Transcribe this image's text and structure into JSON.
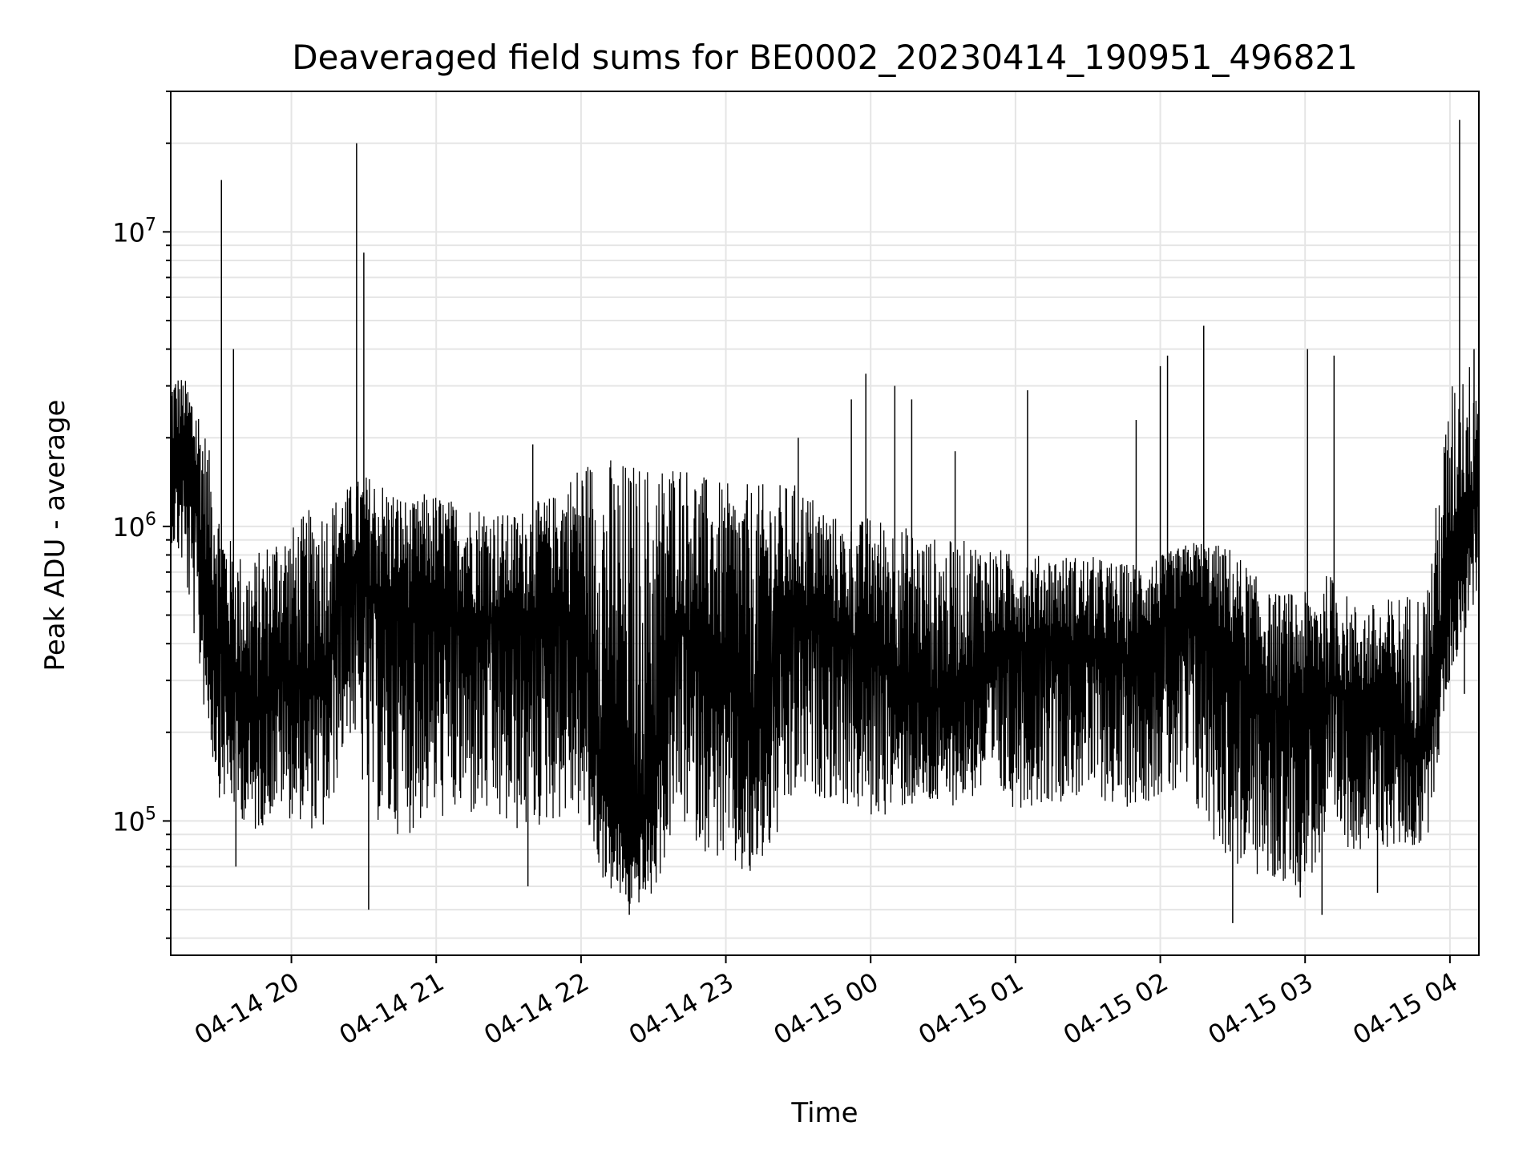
{
  "chart_data": {
    "type": "line",
    "title": "Deaveraged field sums for BE0002_20230414_190951_496821",
    "xlabel": "Time",
    "ylabel": "Peak ADU - average",
    "yscale": "log",
    "ylim": [
      35000,
      30000000
    ],
    "xlim": [
      "2023-04-14 19:10",
      "2023-04-15 04:12"
    ],
    "grid": true,
    "line_color": "#000000",
    "grid_color": "#e5e5e5",
    "x_ticks": [
      "04-14 20",
      "04-14 21",
      "04-14 22",
      "04-14 23",
      "04-15 00",
      "04-15 01",
      "04-15 02",
      "04-15 03",
      "04-15 04"
    ],
    "y_ticks": [
      {
        "value": 100000,
        "base": "10",
        "exp": "5"
      },
      {
        "value": 1000000,
        "base": "10",
        "exp": "6"
      },
      {
        "value": 10000000,
        "base": "10",
        "exp": "7"
      }
    ],
    "series": [
      {
        "x": [
          "2023-04-14 19:10",
          "2023-04-14 19:15",
          "2023-04-14 19:20",
          "2023-04-14 19:25",
          "2023-04-14 19:30",
          "2023-04-14 19:35",
          "2023-04-14 19:40",
          "2023-04-14 19:45",
          "2023-04-14 19:50",
          "2023-04-14 19:55",
          "2023-04-14 20:00",
          "2023-04-14 20:05",
          "2023-04-14 20:10",
          "2023-04-14 20:15",
          "2023-04-14 20:20",
          "2023-04-14 20:25",
          "2023-04-14 20:30",
          "2023-04-14 20:35",
          "2023-04-14 20:40",
          "2023-04-14 20:45",
          "2023-04-14 20:50",
          "2023-04-14 20:55",
          "2023-04-14 21:00",
          "2023-04-14 21:10",
          "2023-04-14 21:20",
          "2023-04-14 21:30",
          "2023-04-14 21:40",
          "2023-04-14 21:50",
          "2023-04-14 22:00",
          "2023-04-14 22:10",
          "2023-04-14 22:20",
          "2023-04-14 22:30",
          "2023-04-14 22:40",
          "2023-04-14 22:50",
          "2023-04-14 23:00",
          "2023-04-14 23:10",
          "2023-04-14 23:20",
          "2023-04-14 23:30",
          "2023-04-14 23:40",
          "2023-04-14 23:50",
          "2023-04-15 00:00",
          "2023-04-15 00:15",
          "2023-04-15 00:30",
          "2023-04-15 00:45",
          "2023-04-15 01:00",
          "2023-04-15 01:15",
          "2023-04-15 01:30",
          "2023-04-15 01:45",
          "2023-04-15 02:00",
          "2023-04-15 02:15",
          "2023-04-15 02:30",
          "2023-04-15 02:45",
          "2023-04-15 03:00",
          "2023-04-15 03:10",
          "2023-04-15 03:20",
          "2023-04-15 03:30",
          "2023-04-15 03:40",
          "2023-04-15 03:50",
          "2023-04-15 04:00",
          "2023-04-15 04:05",
          "2023-04-15 04:12"
        ],
        "y": [
          1500000,
          2000000,
          1200000,
          700000,
          400000,
          300000,
          250000,
          220000,
          280000,
          350000,
          300000,
          280000,
          320000,
          350000,
          600000,
          650000,
          700000,
          550000,
          500000,
          550000,
          500000,
          550000,
          550000,
          500000,
          480000,
          450000,
          500000,
          550000,
          450000,
          130000,
          90000,
          110000,
          500000,
          350000,
          300000,
          200000,
          350000,
          500000,
          450000,
          400000,
          380000,
          300000,
          250000,
          350000,
          400000,
          420000,
          380000,
          350000,
          450000,
          600000,
          350000,
          250000,
          230000,
          280000,
          250000,
          220000,
          200000,
          180000,
          600000,
          900000,
          1300000
        ],
        "low": [
          900000,
          700000,
          400000,
          200000,
          120000,
          110000,
          100000,
          90000,
          100000,
          110000,
          100000,
          100000,
          90000,
          90000,
          150000,
          200000,
          120000,
          100000,
          90000,
          90000,
          90000,
          100000,
          100000,
          100000,
          100000,
          90000,
          90000,
          100000,
          100000,
          60000,
          50000,
          55000,
          100000,
          80000,
          70000,
          60000,
          80000,
          120000,
          120000,
          110000,
          100000,
          110000,
          110000,
          120000,
          110000,
          115000,
          120000,
          110000,
          120000,
          100000,
          70000,
          60000,
          60000,
          80000,
          80000,
          80000,
          80000,
          80000,
          300000,
          400000,
          600000
        ],
        "high": [
          3500000,
          3200000,
          3000000,
          2000000,
          1200000,
          900000,
          800000,
          800000,
          900000,
          1000000,
          1000000,
          1100000,
          1200000,
          1200000,
          1300000,
          1400000,
          1500000,
          1500000,
          1400000,
          1300000,
          1200000,
          1300000,
          1300000,
          1200000,
          1200000,
          1100000,
          1200000,
          1300000,
          1700000,
          1800000,
          1700000,
          1700000,
          1700000,
          1500000,
          1400000,
          1400000,
          1400000,
          1400000,
          1200000,
          1000000,
          1100000,
          1000000,
          900000,
          900000,
          800000,
          800000,
          800000,
          750000,
          800000,
          900000,
          850000,
          600000,
          600000,
          700000,
          550000,
          550000,
          600000,
          600000,
          3000000,
          3500000,
          3800000
        ]
      }
    ],
    "spikes": [
      {
        "x": "2023-04-14 19:31",
        "y": 15000000
      },
      {
        "x": "2023-04-14 19:36",
        "y": 4000000
      },
      {
        "x": "2023-04-14 19:37",
        "y": 70000
      },
      {
        "x": "2023-04-14 20:27",
        "y": 20000000
      },
      {
        "x": "2023-04-14 20:30",
        "y": 8500000
      },
      {
        "x": "2023-04-14 20:32",
        "y": 50000
      },
      {
        "x": "2023-04-14 21:38",
        "y": 60000
      },
      {
        "x": "2023-04-14 21:40",
        "y": 1900000
      },
      {
        "x": "2023-04-14 22:20",
        "y": 48000
      },
      {
        "x": "2023-04-14 23:30",
        "y": 2000000
      },
      {
        "x": "2023-04-14 23:52",
        "y": 2700000
      },
      {
        "x": "2023-04-14 23:58",
        "y": 3300000
      },
      {
        "x": "2023-04-15 00:10",
        "y": 3000000
      },
      {
        "x": "2023-04-15 00:17",
        "y": 2700000
      },
      {
        "x": "2023-04-15 00:35",
        "y": 1800000
      },
      {
        "x": "2023-04-15 01:05",
        "y": 2900000
      },
      {
        "x": "2023-04-15 01:50",
        "y": 2300000
      },
      {
        "x": "2023-04-15 02:00",
        "y": 3500000
      },
      {
        "x": "2023-04-15 02:03",
        "y": 3800000
      },
      {
        "x": "2023-04-15 02:18",
        "y": 4800000
      },
      {
        "x": "2023-04-15 02:30",
        "y": 45000
      },
      {
        "x": "2023-04-15 02:58",
        "y": 55000
      },
      {
        "x": "2023-04-15 03:01",
        "y": 4000000
      },
      {
        "x": "2023-04-15 03:07",
        "y": 48000
      },
      {
        "x": "2023-04-15 03:12",
        "y": 3800000
      },
      {
        "x": "2023-04-15 03:30",
        "y": 57000
      },
      {
        "x": "2023-04-15 04:04",
        "y": 24000000
      },
      {
        "x": "2023-04-15 04:06",
        "y": 270000
      },
      {
        "x": "2023-04-15 04:10",
        "y": 4000000
      }
    ]
  }
}
